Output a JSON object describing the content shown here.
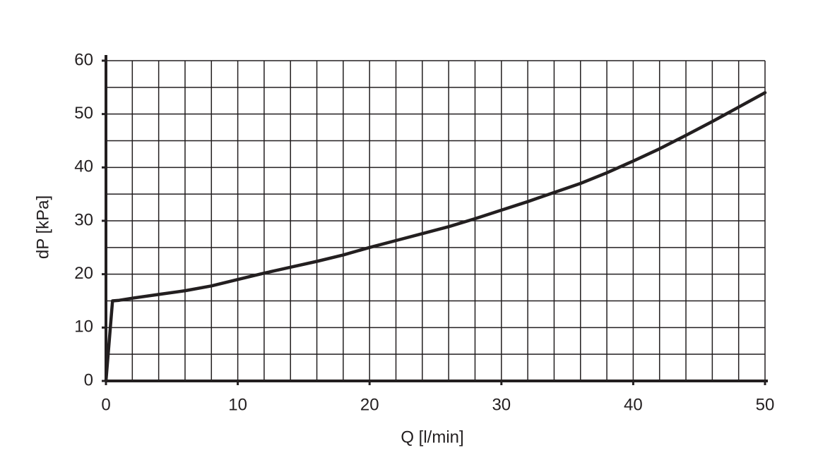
{
  "chart_data": {
    "type": "line",
    "x_label": "Q [l/min]",
    "y_label": "dP [kPa]",
    "x": [
      0,
      0.5,
      1,
      2,
      4,
      6,
      8,
      10,
      12,
      14,
      16,
      18,
      20,
      22,
      24,
      26,
      28,
      30,
      32,
      34,
      36,
      38,
      40,
      42,
      44,
      46,
      48,
      50
    ],
    "values": [
      0,
      15,
      15.1,
      15.5,
      16.2,
      16.9,
      17.8,
      19,
      20.2,
      21.3,
      22.4,
      23.6,
      25,
      26.3,
      27.6,
      28.9,
      30.4,
      32,
      33.6,
      35.3,
      37,
      39,
      41.2,
      43.5,
      46,
      48.6,
      51.3,
      54
    ],
    "color": "#231f20",
    "xlim": [
      0,
      50
    ],
    "xticks": [
      0,
      10,
      20,
      30,
      40,
      50
    ],
    "ylim": [
      0,
      60
    ],
    "yticks": [
      0,
      10,
      20,
      30,
      40,
      50,
      60
    ],
    "grid": true
  }
}
